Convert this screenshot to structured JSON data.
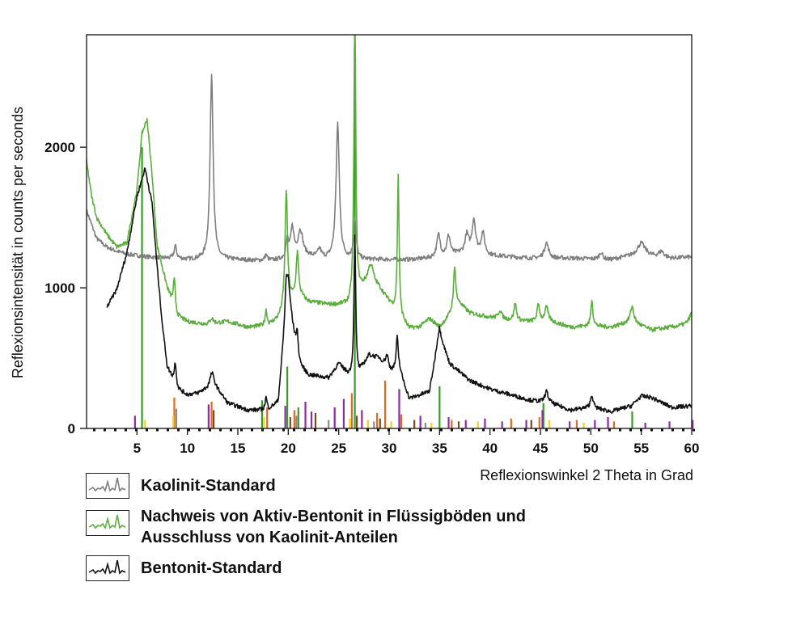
{
  "chart_data": {
    "type": "line",
    "xlabel": "Reflexionswinkel 2 Theta in Grad",
    "ylabel": "Reflexionsintensität in counts per seconds",
    "xlim": [
      0,
      60
    ],
    "ylim": [
      0,
      2800
    ],
    "xticks": [
      5,
      10,
      15,
      20,
      25,
      30,
      35,
      40,
      45,
      50,
      55,
      60
    ],
    "yticks": [
      0,
      1000,
      2000
    ],
    "grid": false,
    "legend_position": "bottom-left",
    "series": [
      {
        "name": "Kaolinit-Standard",
        "color": "#7f7f7f",
        "baseline": [
          [
            0,
            1550
          ],
          [
            1,
            1350
          ],
          [
            2,
            1290
          ],
          [
            3,
            1260
          ],
          [
            4,
            1240
          ],
          [
            6,
            1220
          ],
          [
            8,
            1210
          ],
          [
            10,
            1200
          ],
          [
            14,
            1200
          ],
          [
            18,
            1190
          ],
          [
            20,
            1200
          ],
          [
            22,
            1220
          ],
          [
            24,
            1200
          ],
          [
            26,
            1200
          ],
          [
            28,
            1200
          ],
          [
            32,
            1200
          ],
          [
            34,
            1210
          ],
          [
            36,
            1230
          ],
          [
            38,
            1260
          ],
          [
            40,
            1230
          ],
          [
            44,
            1210
          ],
          [
            48,
            1210
          ],
          [
            52,
            1200
          ],
          [
            54,
            1230
          ],
          [
            55,
            1260
          ],
          [
            56,
            1230
          ],
          [
            58,
            1210
          ],
          [
            60,
            1220
          ]
        ],
        "peaks": [
          [
            8.8,
            90,
            0.15
          ],
          [
            12.4,
            1320,
            0.18
          ],
          [
            17.8,
            40,
            0.15
          ],
          [
            19.9,
            130,
            0.15
          ],
          [
            20.4,
            210,
            0.2
          ],
          [
            21.2,
            190,
            0.3
          ],
          [
            23.1,
            60,
            0.2
          ],
          [
            24.9,
            960,
            0.2
          ],
          [
            26.6,
            280,
            0.15
          ],
          [
            34.9,
            160,
            0.2
          ],
          [
            35.9,
            140,
            0.2
          ],
          [
            37.7,
            120,
            0.2
          ],
          [
            38.4,
            230,
            0.2
          ],
          [
            39.3,
            150,
            0.2
          ],
          [
            45.6,
            110,
            0.25
          ],
          [
            51.0,
            50,
            0.2
          ],
          [
            55.0,
            60,
            0.4
          ],
          [
            57.0,
            40,
            0.3
          ]
        ]
      },
      {
        "name": "Nachweis von Aktiv-Bentonit in Flüssigböden und Ausschluss von Kaolinit-Anteilen",
        "color": "#5aae3c",
        "baseline": [
          [
            0,
            1900
          ],
          [
            0.5,
            1650
          ],
          [
            1,
            1500
          ],
          [
            2,
            1380
          ],
          [
            3,
            1290
          ],
          [
            4,
            1320
          ],
          [
            5,
            1700
          ],
          [
            5.5,
            2100
          ],
          [
            6,
            2200
          ],
          [
            6.5,
            1800
          ],
          [
            7,
            1300
          ],
          [
            8,
            1000
          ],
          [
            9,
            800
          ],
          [
            10,
            760
          ],
          [
            12,
            740
          ],
          [
            14,
            760
          ],
          [
            16,
            720
          ],
          [
            18,
            730
          ],
          [
            19,
            780
          ],
          [
            20,
            900
          ],
          [
            21,
            950
          ],
          [
            22,
            900
          ],
          [
            24,
            880
          ],
          [
            26,
            880
          ],
          [
            27,
            980
          ],
          [
            28,
            1050
          ],
          [
            29,
            1000
          ],
          [
            30,
            900
          ],
          [
            31,
            800
          ],
          [
            32,
            710
          ],
          [
            33,
            720
          ],
          [
            34,
            780
          ],
          [
            35,
            720
          ],
          [
            36,
            800
          ],
          [
            37,
            880
          ],
          [
            38,
            820
          ],
          [
            40,
            790
          ],
          [
            42,
            770
          ],
          [
            44,
            760
          ],
          [
            46,
            760
          ],
          [
            48,
            720
          ],
          [
            50,
            730
          ],
          [
            52,
            720
          ],
          [
            54,
            760
          ],
          [
            56,
            700
          ],
          [
            58,
            720
          ],
          [
            60,
            740
          ]
        ],
        "peaks": [
          [
            8.7,
            200,
            0.12
          ],
          [
            12.4,
            40,
            0.2
          ],
          [
            17.8,
            110,
            0.12
          ],
          [
            19.8,
            820,
            0.14
          ],
          [
            20.9,
            300,
            0.14
          ],
          [
            26.6,
            2200,
            0.1
          ],
          [
            28.2,
            120,
            0.3
          ],
          [
            30.9,
            1000,
            0.1
          ],
          [
            36.5,
            300,
            0.15
          ],
          [
            41.0,
            60,
            0.2
          ],
          [
            42.5,
            120,
            0.15
          ],
          [
            44.8,
            120,
            0.15
          ],
          [
            45.6,
            100,
            0.2
          ],
          [
            50.1,
            190,
            0.12
          ],
          [
            54.1,
            110,
            0.2
          ],
          [
            60,
            80,
            0.3
          ]
        ]
      },
      {
        "name": "Bentonit-Standard",
        "color": "#111111",
        "baseline": [
          [
            2,
            860
          ],
          [
            3,
            990
          ],
          [
            4,
            1250
          ],
          [
            5,
            1650
          ],
          [
            5.8,
            1850
          ],
          [
            6.5,
            1600
          ],
          [
            7,
            1150
          ],
          [
            7.5,
            750
          ],
          [
            8,
            440
          ],
          [
            9,
            280
          ],
          [
            10,
            240
          ],
          [
            11,
            250
          ],
          [
            12,
            290
          ],
          [
            12.5,
            340
          ],
          [
            13,
            280
          ],
          [
            14,
            180
          ],
          [
            16,
            130
          ],
          [
            18,
            130
          ],
          [
            19,
            190
          ],
          [
            20,
            1000
          ],
          [
            20.5,
            700
          ],
          [
            21,
            460
          ],
          [
            22,
            380
          ],
          [
            24,
            360
          ],
          [
            25,
            460
          ],
          [
            26,
            380
          ],
          [
            27,
            390
          ],
          [
            28,
            520
          ],
          [
            29,
            500
          ],
          [
            30,
            400
          ],
          [
            31,
            420
          ],
          [
            32,
            210
          ],
          [
            34,
            260
          ],
          [
            35,
            660
          ],
          [
            36,
            460
          ],
          [
            38,
            340
          ],
          [
            40,
            280
          ],
          [
            42,
            240
          ],
          [
            44,
            200
          ],
          [
            46,
            180
          ],
          [
            48,
            130
          ],
          [
            50,
            150
          ],
          [
            52,
            120
          ],
          [
            54,
            160
          ],
          [
            55,
            230
          ],
          [
            56,
            220
          ],
          [
            58,
            150
          ],
          [
            60,
            160
          ]
        ],
        "peaks": [
          [
            8.8,
            160,
            0.12
          ],
          [
            12.4,
            60,
            0.2
          ],
          [
            17.8,
            90,
            0.12
          ],
          [
            19.8,
            240,
            0.15
          ],
          [
            20.9,
            180,
            0.15
          ],
          [
            26.6,
            1000,
            0.1
          ],
          [
            29.8,
            100,
            0.2
          ],
          [
            30.8,
            230,
            0.12
          ],
          [
            34.9,
            60,
            0.3
          ],
          [
            45.6,
            80,
            0.2
          ],
          [
            50.1,
            90,
            0.15
          ]
        ]
      }
    ],
    "reference_lines": [
      {
        "color": "#3c9a2c",
        "x": [
          5.5,
          19.9,
          26.6,
          35.0,
          45.3,
          54.1,
          17.4,
          21.0
        ],
        "y": [
          2000,
          440,
          2800,
          300,
          180,
          120,
          200,
          150
        ]
      },
      {
        "color": "#e06a1e",
        "x": [
          8.7,
          12.4,
          17.9,
          20.6,
          26.3,
          28.8,
          29.6,
          31.2,
          36.2,
          42.1,
          44.9,
          48.6,
          52.3
        ],
        "y": [
          220,
          190,
          150,
          130,
          250,
          110,
          340,
          100,
          60,
          70,
          80,
          60,
          50
        ]
      },
      {
        "color": "#8a2ca3",
        "x": [
          4.8,
          12.1,
          19.7,
          21.7,
          22.3,
          24.6,
          25.5,
          27.3,
          31.0,
          33.1,
          35.9,
          37.6,
          39.5,
          41.2,
          43.6,
          45.2,
          47.9,
          50.4,
          51.7,
          55.4,
          57.8,
          60.1
        ],
        "y": [
          90,
          170,
          160,
          190,
          120,
          150,
          210,
          130,
          280,
          90,
          80,
          60,
          70,
          50,
          60,
          130,
          50,
          60,
          80,
          40,
          50,
          60
        ]
      },
      {
        "color": "#f0d21e",
        "x": [
          5.8,
          8.6,
          17.6,
          26.1,
          27.9,
          30.2,
          34.2,
          38.8,
          45.9,
          49.3
        ],
        "y": [
          60,
          90,
          80,
          70,
          60,
          50,
          40,
          50,
          60,
          40
        ]
      },
      {
        "color": "#7a4a1e",
        "x": [
          12.6,
          20.2,
          22.7,
          26.8,
          29.1,
          32.5,
          36.9,
          44.1
        ],
        "y": [
          130,
          80,
          110,
          90,
          70,
          60,
          50,
          60
        ]
      },
      {
        "color": "#8c8c8c",
        "x": [
          8.9,
          20.8,
          24.0,
          28.5,
          33.6
        ],
        "y": [
          140,
          90,
          60,
          50,
          40
        ]
      }
    ]
  }
}
